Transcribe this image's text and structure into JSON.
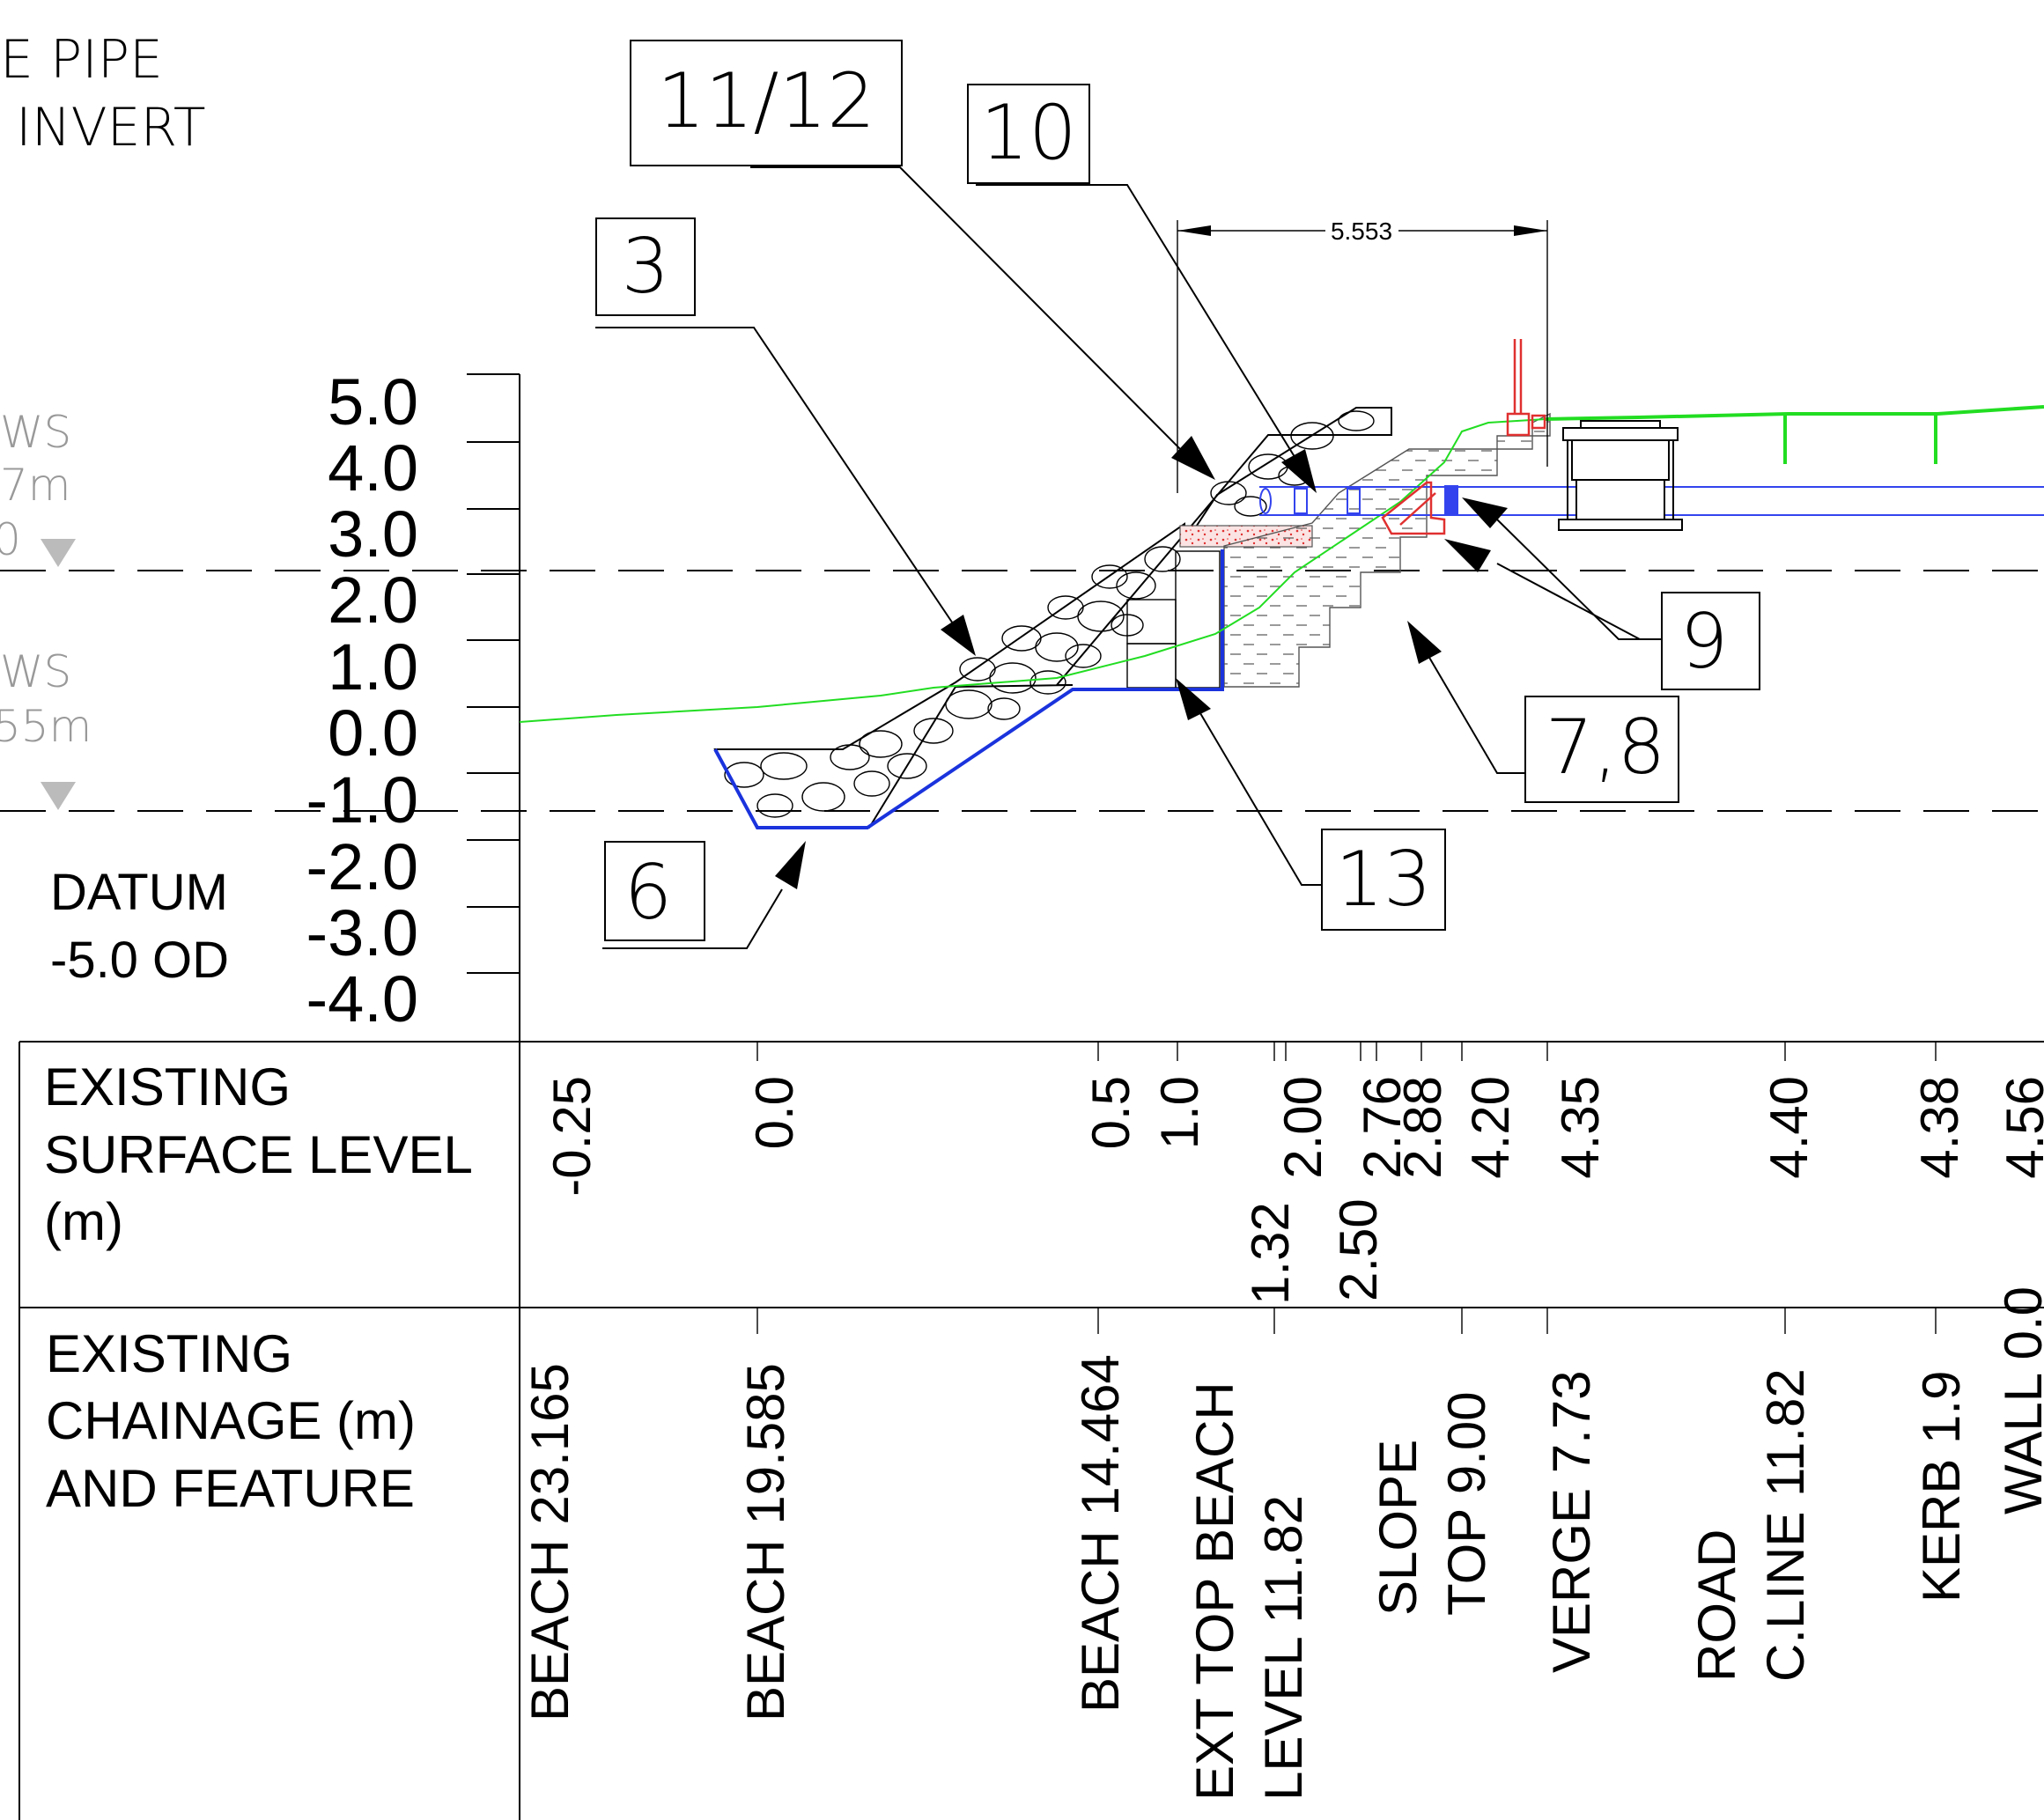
{
  "notes": {
    "pipe_line1": "E PIPE",
    "pipe_line2": "INVERT",
    "ws_upper_label": "WS",
    "ws_upper_value": "7m",
    "ws_upper_code": "0",
    "ws_lower_label": "WS",
    "ws_lower_value": "55m"
  },
  "datum": {
    "line1": "DATUM",
    "line2": "-5.0 OD"
  },
  "level_scale": {
    "labels": [
      "5.0",
      "4.0",
      "3.0",
      "2.0",
      "1.0",
      "0.0",
      "-1.0",
      "-2.0",
      "-3.0",
      "-4.0"
    ]
  },
  "callouts": [
    {
      "id": "c-11-12",
      "text": "11/12"
    },
    {
      "id": "c-10",
      "text": "10"
    },
    {
      "id": "c-3",
      "text": "3"
    },
    {
      "id": "c-9",
      "text": "9"
    },
    {
      "id": "c-7-8",
      "text": "7,8"
    },
    {
      "id": "c-13",
      "text": "13"
    },
    {
      "id": "c-6",
      "text": "6"
    }
  ],
  "dimension": {
    "value": "5.553"
  },
  "table": {
    "surface_header": [
      "EXISTING",
      "SURFACE LEVEL",
      "(m)"
    ],
    "surface_values": [
      "-0.25",
      "0.0",
      "0.5",
      "1.0",
      "1.32",
      "2.00",
      "2.50",
      "2.76",
      "2.88",
      "4.20",
      "4.35",
      "4.40",
      "4.38",
      "4.56"
    ],
    "chainage_header": [
      "EXISTING",
      "CHAINAGE (m)",
      "AND FEATURE"
    ],
    "chainage_features": [
      [
        "BEACH 23.165"
      ],
      [
        "BEACH 19.585"
      ],
      [
        "BEACH 14.464"
      ],
      [
        "EXT TOP BEACH",
        "LEVEL 11.82"
      ],
      [
        "SLOPE",
        "TOP 9.00"
      ],
      [
        "VERGE 7.73"
      ],
      [
        "ROAD",
        "C.LINE 11.82"
      ],
      [
        "KERB 1.9"
      ],
      [
        "WALL 0.0"
      ]
    ]
  },
  "colors": {
    "ground_line": "#22dd22",
    "formation": "#1a33dd",
    "pipe": "#3344ee",
    "concrete": "#e03030",
    "water_level_marker": "#bbbbbb"
  }
}
